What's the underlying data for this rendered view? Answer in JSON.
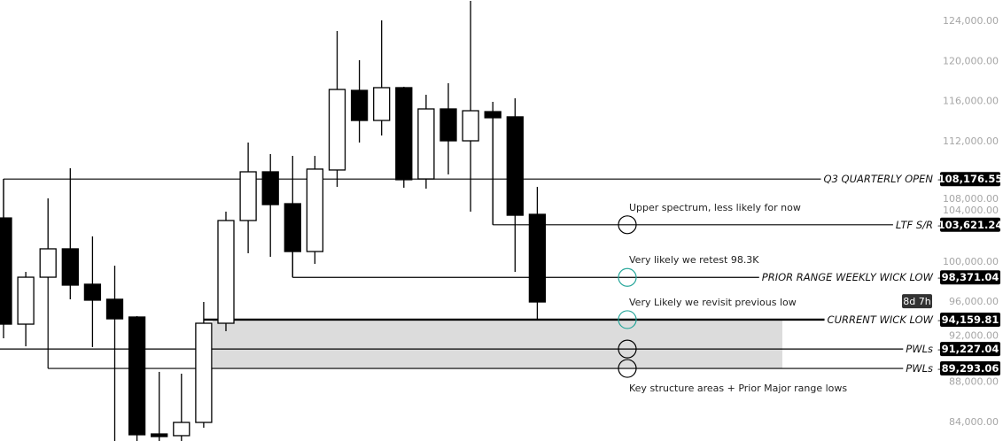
{
  "chart_data": {
    "type": "candlestick",
    "title": "",
    "xlabel": "",
    "ylabel": "",
    "ylim": [
      81500,
      126000
    ],
    "grid": false,
    "y_ticks": [
      "124,000.00",
      "120,000.00",
      "116,000.00",
      "112,000.00",
      "108,000.00",
      "104,000.00",
      "100,000.00",
      "96,000.00",
      "92,000.00",
      "88,000.00",
      "84,000.00"
    ],
    "y_tick_values": [
      124000,
      120000,
      116000,
      112000,
      108000,
      104000,
      100000,
      96000,
      92000,
      88000,
      84000
    ],
    "colors": {
      "up_body": "#ffffff",
      "down_body": "#000000",
      "wick": "#000000",
      "zone": "#dcdcdc",
      "teal_circle": "#26a69a",
      "label_box": "#000000"
    },
    "candles": [
      {
        "o": 104300,
        "h": 108190,
        "l": 92300,
        "c": 93710
      },
      {
        "o": 93710,
        "h": 98920,
        "l": 91500,
        "c": 98390
      },
      {
        "o": 98390,
        "h": 106250,
        "l": 98300,
        "c": 101220
      },
      {
        "o": 101220,
        "h": 109250,
        "l": 96190,
        "c": 97600
      },
      {
        "o": 97690,
        "h": 102460,
        "l": 91420,
        "c": 96100
      },
      {
        "o": 96190,
        "h": 99540,
        "l": 81500,
        "c": 94240
      },
      {
        "o": 94420,
        "h": 94510,
        "l": 81500,
        "c": 82680
      },
      {
        "o": 82760,
        "h": 88950,
        "l": 81500,
        "c": 82500
      },
      {
        "o": 82590,
        "h": 88770,
        "l": 81500,
        "c": 83910
      },
      {
        "o": 83910,
        "h": 95920,
        "l": 83380,
        "c": 93800
      },
      {
        "o": 93800,
        "h": 104930,
        "l": 93010,
        "c": 104040
      },
      {
        "o": 104040,
        "h": 111820,
        "l": 100780,
        "c": 108900
      },
      {
        "o": 108900,
        "h": 110670,
        "l": 100420,
        "c": 105630
      },
      {
        "o": 105720,
        "h": 110490,
        "l": 98371,
        "c": 100950
      },
      {
        "o": 100950,
        "h": 110490,
        "l": 99720,
        "c": 109170
      },
      {
        "o": 109080,
        "h": 122940,
        "l": 107400,
        "c": 117110
      },
      {
        "o": 117020,
        "h": 120030,
        "l": 111820,
        "c": 114020
      },
      {
        "o": 114020,
        "h": 124000,
        "l": 112520,
        "c": 117290
      },
      {
        "o": 117290,
        "h": 117380,
        "l": 107310,
        "c": 108110
      },
      {
        "o": 108190,
        "h": 116580,
        "l": 107220,
        "c": 115170
      },
      {
        "o": 115170,
        "h": 117730,
        "l": 108640,
        "c": 111990
      },
      {
        "o": 111990,
        "h": 125940,
        "l": 104930,
        "c": 114990
      },
      {
        "o": 114900,
        "h": 115880,
        "l": 103621,
        "c": 114290
      },
      {
        "o": 114380,
        "h": 116230,
        "l": 98920,
        "c": 104570
      },
      {
        "o": 104660,
        "h": 107400,
        "l": 94160,
        "c": 95920
      }
    ],
    "levels": [
      {
        "label": "Q3 QUARTERLY OPEN",
        "value": 108176.55,
        "value_text": "108,176.55",
        "from_candle": 0
      },
      {
        "label": "LTF S/R",
        "value": 103621.24,
        "value_text": "103,621.24",
        "from_candle": 22
      },
      {
        "label": "PRIOR RANGE WEEKLY WICK LOW",
        "value": 98371.04,
        "value_text": "98,371.04",
        "from_candle": 13
      },
      {
        "label": "CURRENT WICK LOW",
        "value": 94159.81,
        "value_text": "94,159.81",
        "from_candle": 9,
        "thick": true
      },
      {
        "label": "PWLs",
        "value": 91227.04,
        "value_text": "91,227.04",
        "from_candle": -1
      },
      {
        "label": "PWLs",
        "value": 89293.06,
        "value_text": "89,293.06",
        "from_candle": 2
      }
    ],
    "zone": {
      "top": 94159.81,
      "bottom": 89293.06
    },
    "countdown": "8d 7h",
    "countdown_value": 96000,
    "annotations": [
      {
        "text": "Upper spectrum, less likely for now",
        "level": 103621.24,
        "circle": "black"
      },
      {
        "text": "Very likely we retest 98.3K",
        "level": 98371.04,
        "circle": "teal"
      },
      {
        "text": "Very Likely we revisit previous low",
        "level": 94159.81,
        "circle": "teal"
      },
      {
        "text": "Key structure areas + Prior Major range lows",
        "level": 89293.06,
        "circle": "black",
        "below": true
      }
    ],
    "extra_circles": [
      {
        "level": 91227.04,
        "circle": "black"
      }
    ]
  }
}
